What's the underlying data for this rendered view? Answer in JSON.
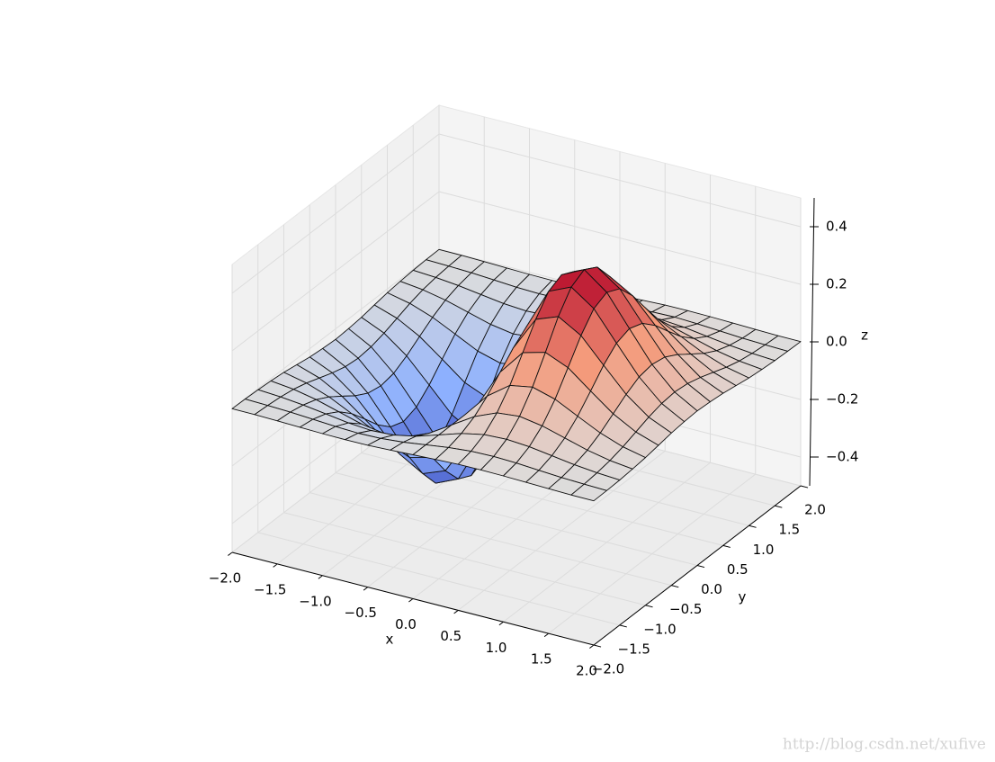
{
  "chart_data": {
    "type": "surface",
    "xlabel": "x",
    "ylabel": "y",
    "zlabel": "z",
    "x": [
      -2,
      -1.75,
      -1.5,
      -1.25,
      -1,
      -0.75,
      -0.5,
      -0.25,
      0,
      0.25,
      0.5,
      0.75,
      1,
      1.25,
      1.5,
      1.75,
      2
    ],
    "y": [
      -2,
      -1.75,
      -1.5,
      -1.25,
      -1,
      -0.75,
      -0.5,
      -0.25,
      0,
      0.25,
      0.5,
      0.75,
      1,
      1.25,
      1.5,
      1.75,
      2
    ],
    "z": [
      [
        -0.001,
        -0.001,
        -0.003,
        -0.005,
        -0.007,
        -0.008,
        -0.007,
        -0.004,
        0,
        0.004,
        0.007,
        0.008,
        0.007,
        0.005,
        0.003,
        0.001,
        0.001
      ],
      [
        -0.002,
        -0.004,
        -0.007,
        -0.012,
        -0.017,
        -0.02,
        -0.018,
        -0.011,
        0,
        0.011,
        0.018,
        0.02,
        0.017,
        0.012,
        0.007,
        0.004,
        0.002
      ],
      [
        -0.004,
        -0.009,
        -0.017,
        -0.028,
        -0.039,
        -0.045,
        -0.041,
        -0.025,
        0,
        0.025,
        0.041,
        0.045,
        0.039,
        0.028,
        0.017,
        0.009,
        0.004
      ],
      [
        -0.008,
        -0.017,
        -0.033,
        -0.055,
        -0.077,
        -0.09,
        -0.082,
        -0.049,
        0,
        0.049,
        0.082,
        0.09,
        0.077,
        0.055,
        0.033,
        0.017,
        0.008
      ],
      [
        -0.013,
        -0.03,
        -0.058,
        -0.096,
        -0.135,
        -0.157,
        -0.143,
        -0.086,
        0,
        0.086,
        0.143,
        0.157,
        0.135,
        0.096,
        0.058,
        0.03,
        0.013
      ],
      [
        -0.021,
        -0.047,
        -0.09,
        -0.149,
        -0.21,
        -0.243,
        -0.222,
        -0.134,
        0,
        0.134,
        0.222,
        0.243,
        0.21,
        0.149,
        0.09,
        0.047,
        0.021
      ],
      [
        -0.029,
        -0.064,
        -0.123,
        -0.204,
        -0.287,
        -0.333,
        -0.303,
        -0.183,
        0,
        0.183,
        0.303,
        0.333,
        0.287,
        0.204,
        0.123,
        0.064,
        0.029
      ],
      [
        -0.034,
        -0.077,
        -0.149,
        -0.246,
        -0.346,
        -0.401,
        -0.366,
        -0.221,
        0,
        0.221,
        0.366,
        0.401,
        0.346,
        0.246,
        0.149,
        0.077,
        0.034
      ],
      [
        -0.037,
        -0.082,
        -0.158,
        -0.262,
        -0.368,
        -0.427,
        -0.389,
        -0.235,
        0,
        0.235,
        0.389,
        0.427,
        0.368,
        0.262,
        0.158,
        0.082,
        0.037
      ],
      [
        -0.034,
        -0.077,
        -0.149,
        -0.246,
        -0.346,
        -0.401,
        -0.366,
        -0.221,
        0,
        0.221,
        0.366,
        0.401,
        0.346,
        0.246,
        0.149,
        0.077,
        0.034
      ],
      [
        -0.029,
        -0.064,
        -0.123,
        -0.204,
        -0.287,
        -0.333,
        -0.303,
        -0.183,
        0,
        0.183,
        0.303,
        0.333,
        0.287,
        0.204,
        0.123,
        0.064,
        0.029
      ],
      [
        -0.021,
        -0.047,
        -0.09,
        -0.149,
        -0.21,
        -0.243,
        -0.222,
        -0.134,
        0,
        0.134,
        0.222,
        0.243,
        0.21,
        0.149,
        0.09,
        0.047,
        0.021
      ],
      [
        -0.013,
        -0.03,
        -0.058,
        -0.096,
        -0.135,
        -0.157,
        -0.143,
        -0.086,
        0,
        0.086,
        0.143,
        0.157,
        0.135,
        0.096,
        0.058,
        0.03,
        0.013
      ],
      [
        -0.008,
        -0.017,
        -0.033,
        -0.055,
        -0.077,
        -0.09,
        -0.082,
        -0.049,
        0,
        0.049,
        0.082,
        0.09,
        0.077,
        0.055,
        0.033,
        0.017,
        0.008
      ],
      [
        -0.004,
        -0.009,
        -0.017,
        -0.028,
        -0.039,
        -0.045,
        -0.041,
        -0.025,
        0,
        0.025,
        0.041,
        0.045,
        0.039,
        0.028,
        0.017,
        0.009,
        0.004
      ],
      [
        -0.002,
        -0.004,
        -0.007,
        -0.012,
        -0.017,
        -0.02,
        -0.018,
        -0.011,
        0,
        0.011,
        0.018,
        0.02,
        0.017,
        0.012,
        0.007,
        0.004,
        0.002
      ],
      [
        -0.001,
        -0.001,
        -0.003,
        -0.005,
        -0.007,
        -0.008,
        -0.007,
        -0.004,
        0,
        0.004,
        0.007,
        0.008,
        0.007,
        0.005,
        0.003,
        0.001,
        0.001
      ]
    ],
    "colormap": [
      "#3b4cc0",
      "#8db0fe",
      "#dddddd",
      "#f49a7b",
      "#b40426"
    ],
    "xlim": [
      -2,
      2
    ],
    "ylim": [
      -2,
      2
    ],
    "zlim": [
      -0.5,
      0.5
    ],
    "xticks": [
      {
        "value": -2,
        "label": "−2.0"
      },
      {
        "value": -1.5,
        "label": "−1.5"
      },
      {
        "value": -1,
        "label": "−1.0"
      },
      {
        "value": -0.5,
        "label": "−0.5"
      },
      {
        "value": 0,
        "label": "0.0"
      },
      0.5,
      {
        "value": 1,
        "label": "1.0"
      },
      1.5,
      {
        "value": 2,
        "label": "2.0"
      }
    ],
    "yticks": [
      {
        "value": -2,
        "label": "−2.0"
      },
      {
        "value": -1.5,
        "label": "−1.5"
      },
      {
        "value": -1,
        "label": "−1.0"
      },
      {
        "value": -0.5,
        "label": "−0.5"
      },
      {
        "value": 0,
        "label": "0.0"
      },
      0.5,
      {
        "value": 1,
        "label": "1.0"
      },
      1.5,
      {
        "value": 2,
        "label": "2.0"
      }
    ],
    "zticks": [
      {
        "value": -0.4,
        "label": "−0.4"
      },
      {
        "value": -0.2,
        "label": "−0.2"
      },
      {
        "value": 0,
        "label": "0.0"
      },
      0.2,
      0.4
    ],
    "grid": true,
    "watermark": "http://blog.csdn.net/xufive"
  }
}
